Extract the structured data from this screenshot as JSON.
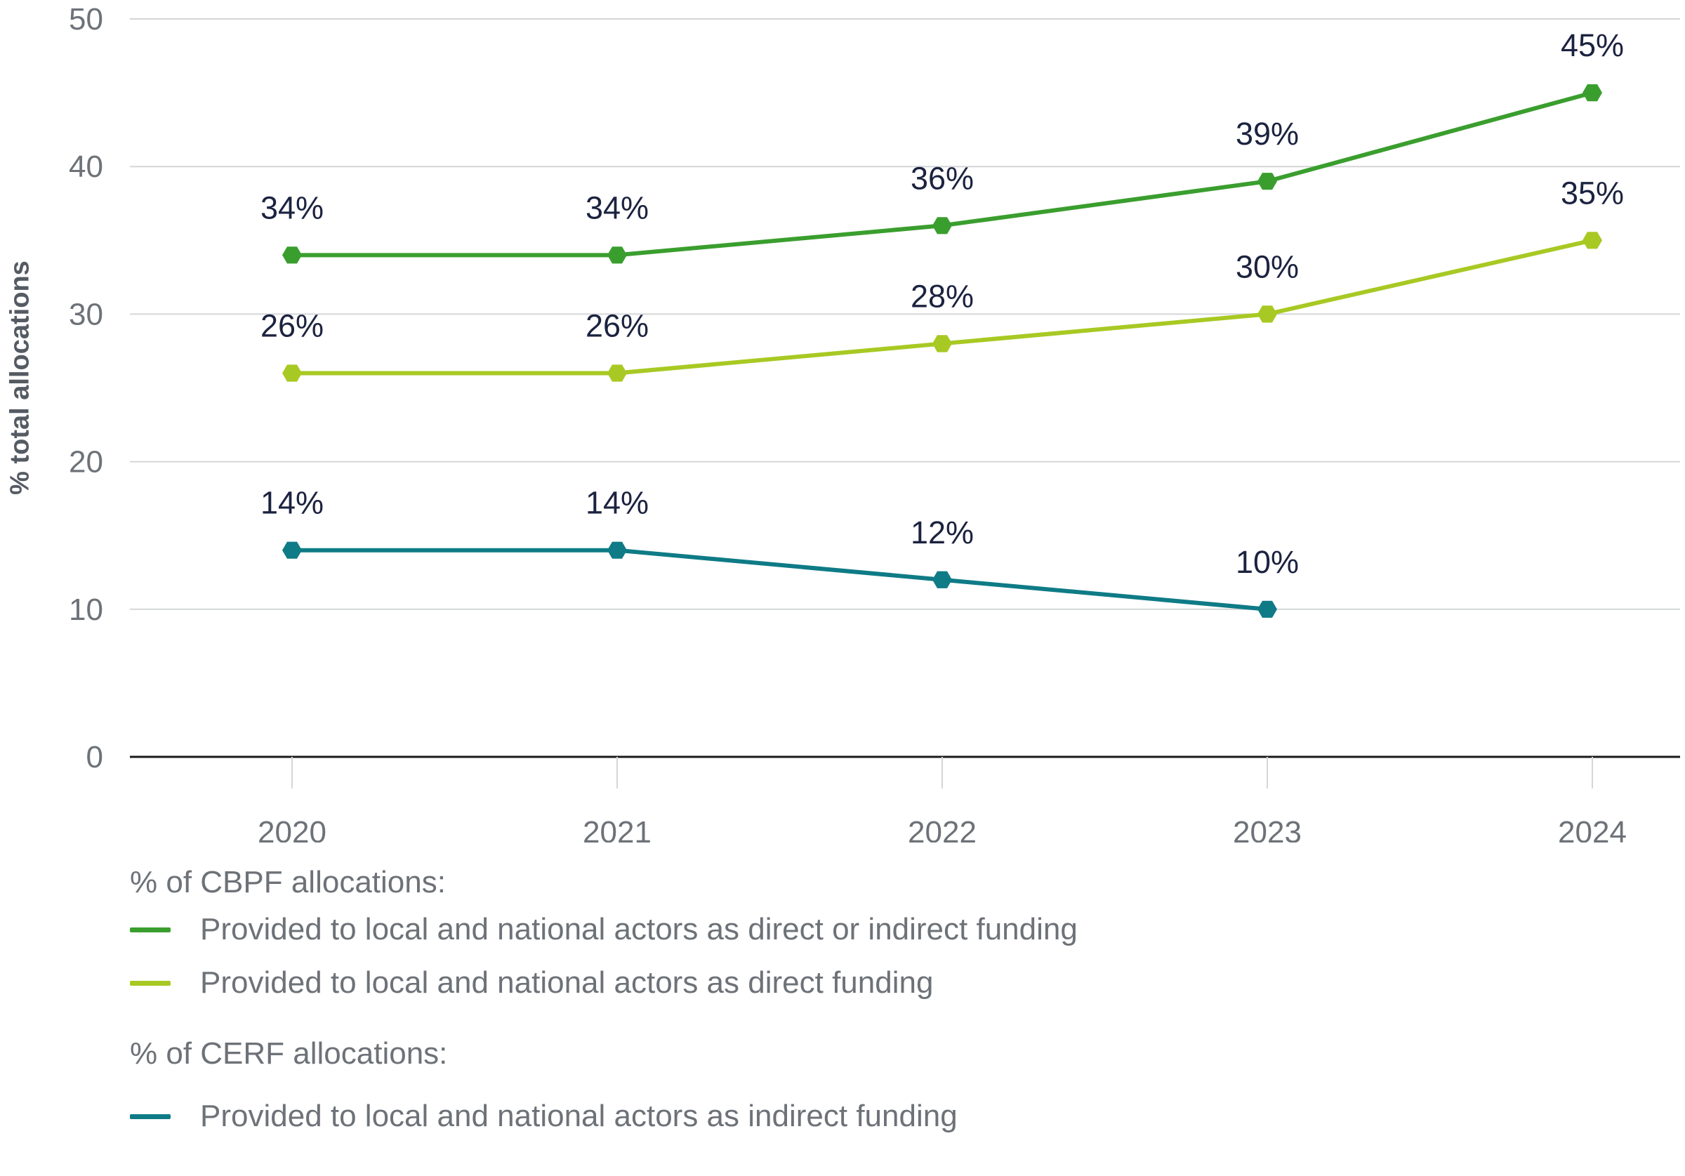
{
  "chart_data": {
    "type": "line",
    "x": [
      "2020",
      "2021",
      "2022",
      "2023",
      "2024"
    ],
    "ylabel": "% total allocations",
    "ylim": [
      0,
      50
    ],
    "yticks": [
      0,
      10,
      20,
      30,
      40,
      50
    ],
    "grid": true,
    "series": [
      {
        "name": "Provided to local and national actors as direct or indirect funding",
        "group": "% of CBPF allocations:",
        "color": "#3a9e2e",
        "values": [
          34,
          34,
          36,
          39,
          45
        ],
        "labels": [
          "34%",
          "34%",
          "36%",
          "39%",
          "45%"
        ]
      },
      {
        "name": "Provided to local and national actors as direct funding",
        "group": "% of CBPF allocations:",
        "color": "#a8c923",
        "values": [
          26,
          26,
          28,
          30,
          35
        ],
        "labels": [
          "26%",
          "26%",
          "28%",
          "30%",
          "35%"
        ]
      },
      {
        "name": "Provided to local and national actors as indirect funding",
        "group": "% of CERF allocations:",
        "color": "#0e7b86",
        "values": [
          14,
          14,
          12,
          10,
          null
        ],
        "labels": [
          "14%",
          "14%",
          "12%",
          "10%",
          null
        ]
      }
    ]
  },
  "legend": {
    "cbpf_title": "% of CBPF allocations:",
    "cerf_title": "% of CERF allocations:"
  }
}
